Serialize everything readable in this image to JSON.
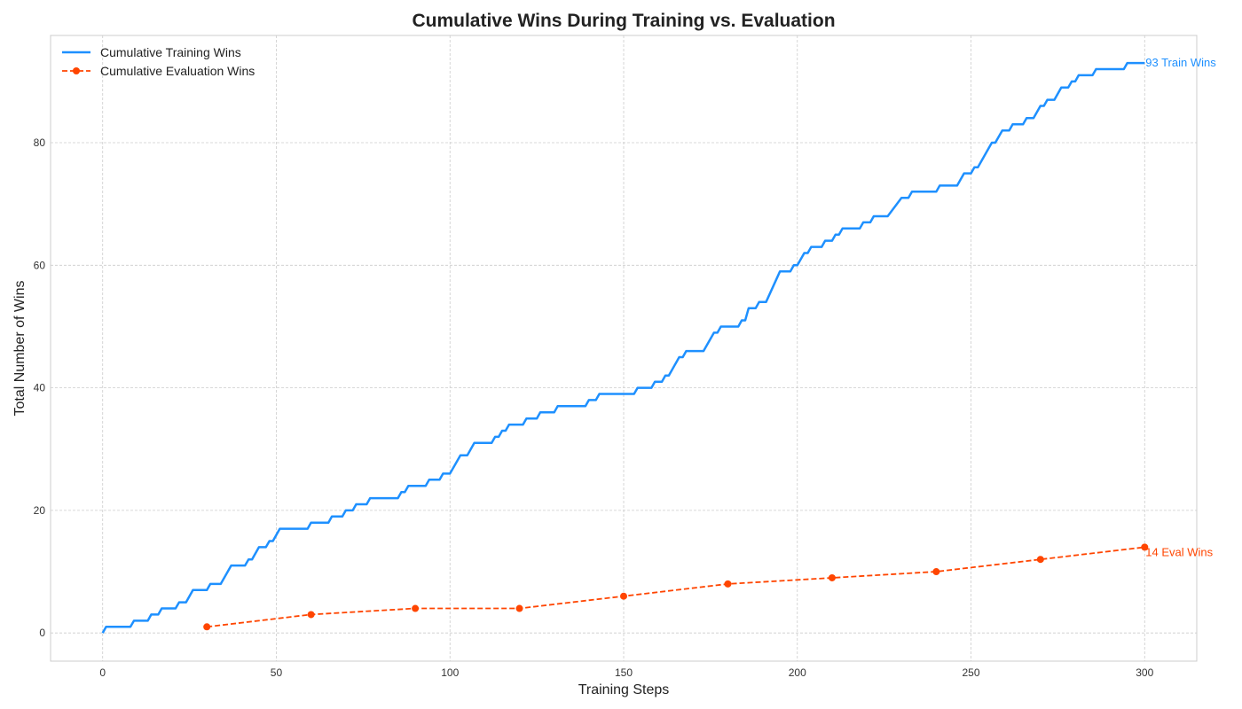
{
  "chart_data": {
    "type": "line",
    "title": "Cumulative Wins During Training vs. Evaluation",
    "xlabel": "Training Steps",
    "ylabel": "Total Number of Wins",
    "xlim": [
      -15,
      315
    ],
    "ylim": [
      -4.6,
      97.5
    ],
    "xticks": [
      0,
      50,
      100,
      150,
      200,
      250,
      300
    ],
    "yticks": [
      0,
      20,
      40,
      60,
      80
    ],
    "grid": true,
    "legend_position": "top-left",
    "series": [
      {
        "name": "Cumulative Training Wins",
        "style": "solid",
        "color": "#1E90FF",
        "points": [
          [
            0,
            0
          ],
          [
            1,
            1
          ],
          [
            8,
            1
          ],
          [
            9,
            2
          ],
          [
            13,
            2
          ],
          [
            14,
            3
          ],
          [
            16,
            3
          ],
          [
            17,
            4
          ],
          [
            21,
            4
          ],
          [
            22,
            5
          ],
          [
            24,
            5
          ],
          [
            26,
            7
          ],
          [
            30,
            7
          ],
          [
            31,
            8
          ],
          [
            34,
            8
          ],
          [
            37,
            11
          ],
          [
            41,
            11
          ],
          [
            42,
            12
          ],
          [
            43,
            12
          ],
          [
            45,
            14
          ],
          [
            47,
            14
          ],
          [
            48,
            15
          ],
          [
            49,
            15
          ],
          [
            51,
            17
          ],
          [
            59,
            17
          ],
          [
            60,
            18
          ],
          [
            65,
            18
          ],
          [
            66,
            19
          ],
          [
            69,
            19
          ],
          [
            70,
            20
          ],
          [
            72,
            20
          ],
          [
            73,
            21
          ],
          [
            76,
            21
          ],
          [
            77,
            22
          ],
          [
            85,
            22
          ],
          [
            86,
            23
          ],
          [
            87,
            23
          ],
          [
            88,
            24
          ],
          [
            93,
            24
          ],
          [
            94,
            25
          ],
          [
            97,
            25
          ],
          [
            98,
            26
          ],
          [
            100,
            26
          ],
          [
            103,
            29
          ],
          [
            105,
            29
          ],
          [
            107,
            31
          ],
          [
            112,
            31
          ],
          [
            113,
            32
          ],
          [
            114,
            32
          ],
          [
            115,
            33
          ],
          [
            116,
            33
          ],
          [
            117,
            34
          ],
          [
            121,
            34
          ],
          [
            122,
            35
          ],
          [
            125,
            35
          ],
          [
            126,
            36
          ],
          [
            130,
            36
          ],
          [
            131,
            37
          ],
          [
            139,
            37
          ],
          [
            140,
            38
          ],
          [
            142,
            38
          ],
          [
            143,
            39
          ],
          [
            153,
            39
          ],
          [
            154,
            40
          ],
          [
            158,
            40
          ],
          [
            159,
            41
          ],
          [
            161,
            41
          ],
          [
            162,
            42
          ],
          [
            163,
            42
          ],
          [
            166,
            45
          ],
          [
            167,
            45
          ],
          [
            168,
            46
          ],
          [
            173,
            46
          ],
          [
            176,
            49
          ],
          [
            177,
            49
          ],
          [
            178,
            50
          ],
          [
            183,
            50
          ],
          [
            184,
            51
          ],
          [
            185,
            51
          ],
          [
            186,
            53
          ],
          [
            188,
            53
          ],
          [
            189,
            54
          ],
          [
            191,
            54
          ],
          [
            195,
            59
          ],
          [
            198,
            59
          ],
          [
            199,
            60
          ],
          [
            200,
            60
          ],
          [
            202,
            62
          ],
          [
            203,
            62
          ],
          [
            204,
            63
          ],
          [
            207,
            63
          ],
          [
            208,
            64
          ],
          [
            210,
            64
          ],
          [
            211,
            65
          ],
          [
            212,
            65
          ],
          [
            213,
            66
          ],
          [
            218,
            66
          ],
          [
            219,
            67
          ],
          [
            221,
            67
          ],
          [
            222,
            68
          ],
          [
            226,
            68
          ],
          [
            230,
            71
          ],
          [
            232,
            71
          ],
          [
            233,
            72
          ],
          [
            240,
            72
          ],
          [
            241,
            73
          ],
          [
            246,
            73
          ],
          [
            248,
            75
          ],
          [
            250,
            75
          ],
          [
            251,
            76
          ],
          [
            252,
            76
          ],
          [
            256,
            80
          ],
          [
            257,
            80
          ],
          [
            259,
            82
          ],
          [
            261,
            82
          ],
          [
            262,
            83
          ],
          [
            265,
            83
          ],
          [
            266,
            84
          ],
          [
            268,
            84
          ],
          [
            270,
            86
          ],
          [
            271,
            86
          ],
          [
            272,
            87
          ],
          [
            274,
            87
          ],
          [
            276,
            89
          ],
          [
            278,
            89
          ],
          [
            279,
            90
          ],
          [
            280,
            90
          ],
          [
            281,
            91
          ],
          [
            285,
            91
          ],
          [
            286,
            92
          ],
          [
            294,
            92
          ],
          [
            295,
            93
          ],
          [
            300,
            93
          ]
        ]
      },
      {
        "name": "Cumulative Evaluation Wins",
        "style": "dashed",
        "marker": "circle",
        "color": "#FF4500",
        "x": [
          30,
          60,
          90,
          120,
          150,
          180,
          210,
          240,
          270,
          300
        ],
        "values": [
          1,
          3,
          4,
          4,
          6,
          8,
          9,
          10,
          12,
          14
        ]
      }
    ],
    "annotations": [
      {
        "text": "93 Train Wins",
        "x": 300,
        "y": 93,
        "color": "#1E90FF"
      },
      {
        "text": "14 Eval Wins",
        "x": 300,
        "y": 14,
        "color": "#FF4500"
      }
    ]
  }
}
